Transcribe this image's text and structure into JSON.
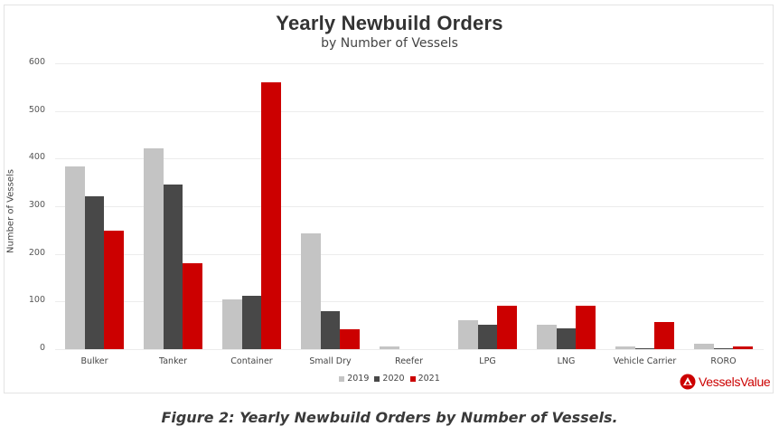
{
  "chart_data": {
    "type": "bar",
    "title": "Yearly Newbuild Orders",
    "subtitle": "by Number of Vessels",
    "xlabel": "",
    "ylabel": "Number of Vessels",
    "ylim": [
      0,
      600
    ],
    "yticks": [
      0,
      100,
      200,
      300,
      400,
      500,
      600
    ],
    "grid": true,
    "legend_position": "bottom",
    "categories": [
      "Bulker",
      "Tanker",
      "Container",
      "Small Dry",
      "Reefer",
      "LPG",
      "LNG",
      "Vehicle Carrier",
      "RORO"
    ],
    "series": [
      {
        "name": "2019",
        "color": "#c4c4c4",
        "values": [
          384,
          422,
          105,
          244,
          5,
          61,
          52,
          5,
          11
        ]
      },
      {
        "name": "2020",
        "color": "#484848",
        "values": [
          321,
          346,
          112,
          80,
          0,
          52,
          44,
          1,
          1
        ]
      },
      {
        "name": "2021",
        "color": "#cc0000",
        "values": [
          249,
          180,
          560,
          42,
          0,
          92,
          92,
          57,
          6
        ]
      }
    ]
  },
  "brand": {
    "name": "VesselsValue",
    "color": "#cc0000"
  },
  "caption": "Figure 2: Yearly Newbuild Orders by Number of Vessels."
}
